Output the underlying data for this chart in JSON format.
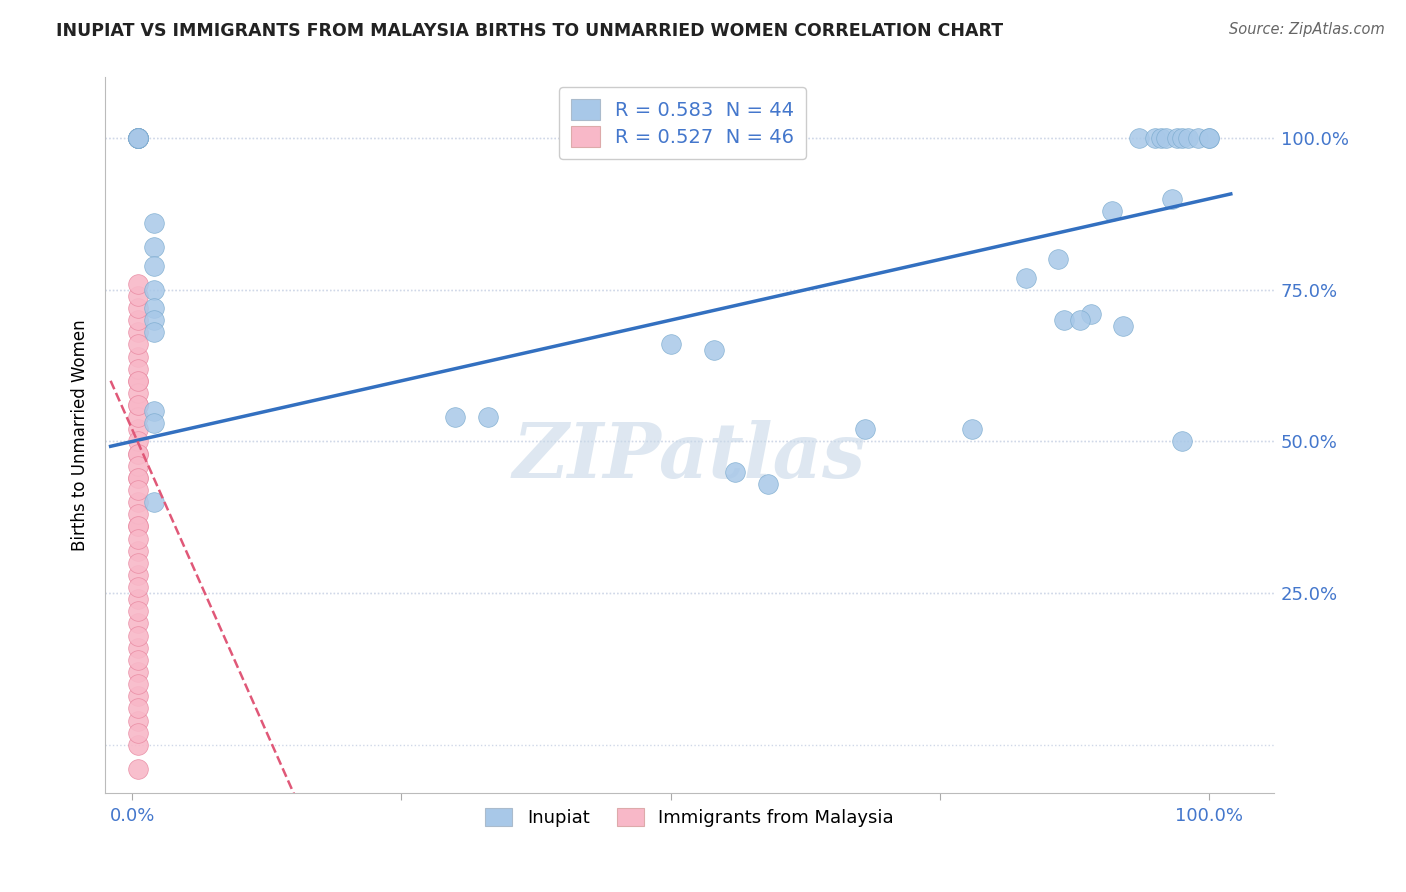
{
  "title": "INUPIAT VS IMMIGRANTS FROM MALAYSIA BIRTHS TO UNMARRIED WOMEN CORRELATION CHART",
  "source": "Source: ZipAtlas.com",
  "ylabel": "Births to Unmarried Women",
  "watermark": "ZIPatlas",
  "legend_blue_r": "R = 0.583",
  "legend_blue_n": "N = 44",
  "legend_pink_r": "R = 0.527",
  "legend_pink_n": "N = 46",
  "blue_color": "#a8c8e8",
  "blue_edge_color": "#7aaace",
  "pink_color": "#f8b8c8",
  "pink_edge_color": "#e888a0",
  "blue_line_color": "#3370c0",
  "pink_line_color": "#e05878",
  "grid_color": "#d0d8e8",
  "background_color": "#ffffff",
  "axis_label_color": "#4477cc",
  "text_color": "#222222",
  "blue_scatter_x": [
    0.005,
    0.005,
    0.005,
    0.005,
    0.005,
    0.005,
    0.005,
    0.02,
    0.02,
    0.02,
    0.02,
    0.02,
    0.02,
    0.02,
    0.02,
    0.02,
    0.02,
    0.3,
    0.33,
    0.5,
    0.54,
    0.56,
    0.59,
    0.68,
    0.78,
    0.86,
    0.89,
    0.92,
    0.935,
    0.95,
    0.955,
    0.96,
    0.97,
    0.975,
    0.98,
    0.99,
    1.0,
    1.0,
    0.91,
    0.83,
    0.865,
    0.88,
    0.965,
    0.975
  ],
  "blue_scatter_y": [
    1.0,
    1.0,
    1.0,
    1.0,
    1.0,
    1.0,
    1.0,
    0.86,
    0.82,
    0.79,
    0.75,
    0.72,
    0.7,
    0.68,
    0.55,
    0.53,
    0.4,
    0.54,
    0.54,
    0.66,
    0.65,
    0.45,
    0.43,
    0.52,
    0.52,
    0.8,
    0.71,
    0.69,
    1.0,
    1.0,
    1.0,
    1.0,
    1.0,
    1.0,
    1.0,
    1.0,
    1.0,
    1.0,
    0.88,
    0.77,
    0.7,
    0.7,
    0.9,
    0.5
  ],
  "pink_scatter_x": [
    0.005,
    0.005,
    0.005,
    0.005,
    0.005,
    0.005,
    0.005,
    0.005,
    0.005,
    0.005,
    0.005,
    0.005,
    0.005,
    0.005,
    0.005,
    0.005,
    0.005,
    0.005,
    0.005,
    0.005,
    0.005,
    0.005,
    0.005,
    0.005,
    0.005,
    0.005,
    0.005,
    0.005,
    0.005,
    0.005,
    0.005,
    0.005,
    0.005,
    0.005,
    0.005,
    0.005,
    0.005,
    0.005,
    0.005,
    0.005,
    0.005,
    0.005,
    0.005,
    0.005,
    0.005,
    0.005
  ],
  "pink_scatter_y": [
    1.0,
    0.68,
    0.64,
    0.6,
    0.56,
    0.52,
    0.48,
    0.44,
    0.4,
    0.36,
    0.32,
    0.28,
    0.24,
    0.2,
    0.16,
    0.12,
    0.08,
    0.04,
    0.0,
    0.5,
    0.48,
    0.46,
    0.44,
    0.38,
    0.36,
    0.34,
    0.3,
    0.26,
    0.22,
    0.18,
    0.14,
    0.1,
    0.06,
    0.54,
    0.58,
    0.56,
    0.62,
    0.6,
    0.66,
    0.7,
    0.72,
    0.74,
    0.76,
    0.02,
    -0.04,
    0.42
  ]
}
